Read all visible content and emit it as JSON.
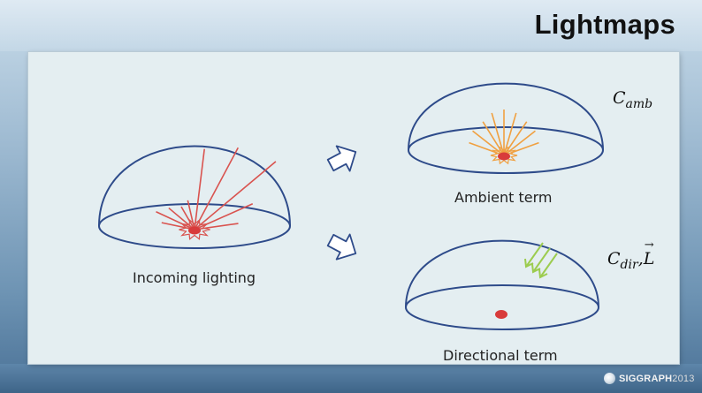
{
  "slide": {
    "title": "Lightmaps"
  },
  "diagram": {
    "incoming_label": "Incoming lighting",
    "ambient_label": "Ambient term",
    "directional_label": "Directional term",
    "ambient_symbol": {
      "base": "C",
      "sub": "amb"
    },
    "directional_symbol": {
      "base": "C",
      "sub": "dir",
      "separator": ",",
      "vector": "L"
    }
  },
  "colors": {
    "dome_outline": "#2e4b8a",
    "incoming_rays": "#d9534f",
    "ambient_rays": "#f0a040",
    "directional_rays": "#9ccc4f",
    "light_source": "#d83b3b",
    "arrow_fill": "#ffffff",
    "arrow_stroke": "#2e4b8a"
  },
  "footer": {
    "logo_name": "SIGGRAPH",
    "logo_year": "2013"
  }
}
